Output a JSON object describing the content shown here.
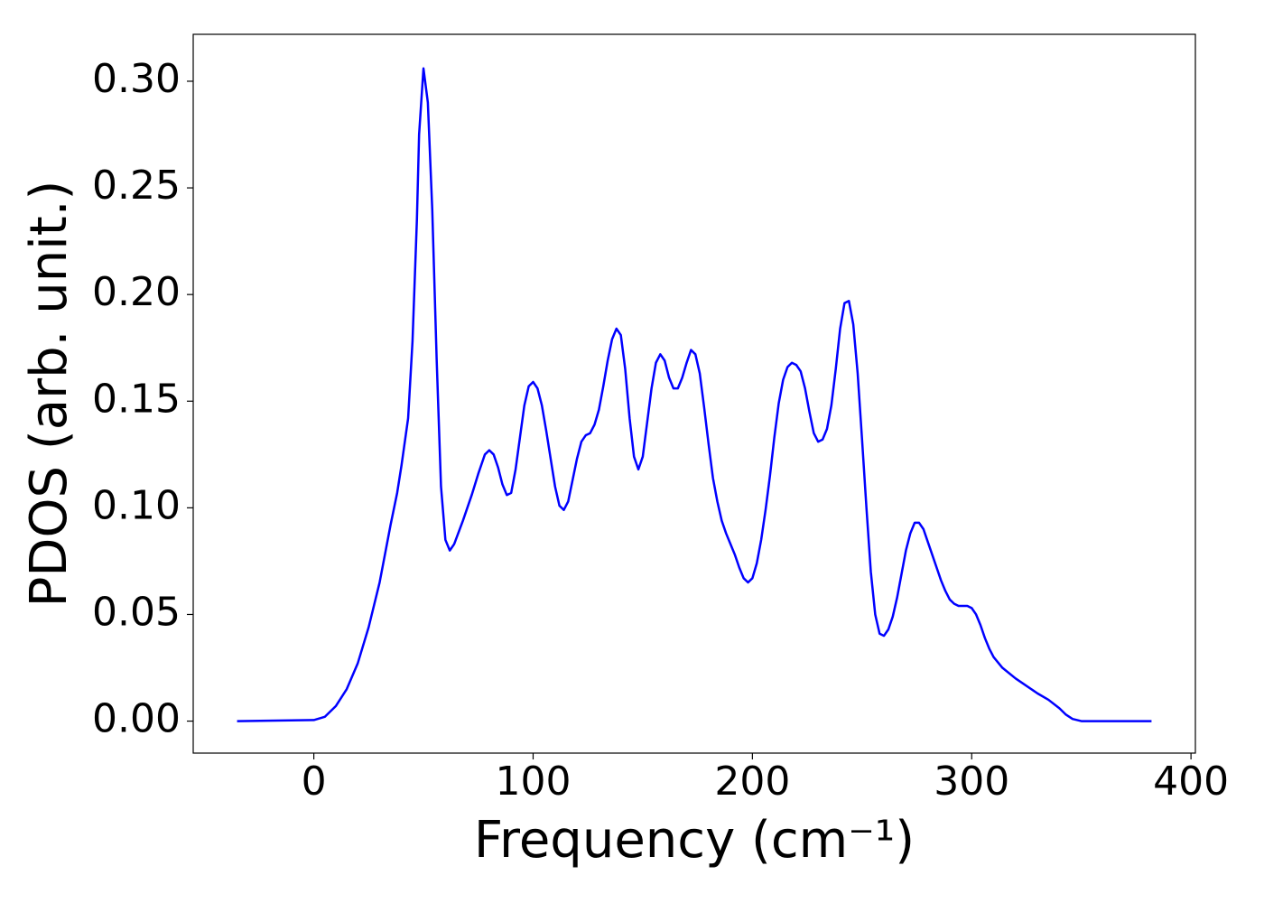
{
  "chart_data": {
    "type": "line",
    "xlabel": "Frequency (cm⁻¹)",
    "ylabel": "PDOS (arb. unit.)",
    "x": [
      -35,
      0,
      5,
      10,
      15,
      20,
      25,
      30,
      35,
      38,
      40,
      43,
      45,
      47,
      48,
      50,
      52,
      54,
      56,
      58,
      60,
      62,
      64,
      68,
      72,
      75,
      78,
      80,
      82,
      84,
      86,
      88,
      90,
      92,
      94,
      96,
      98,
      100,
      102,
      104,
      106,
      108,
      110,
      112,
      114,
      116,
      118,
      120,
      122,
      124,
      126,
      128,
      130,
      132,
      134,
      136,
      138,
      140,
      142,
      144,
      146,
      148,
      150,
      152,
      154,
      156,
      158,
      160,
      162,
      164,
      166,
      168,
      170,
      172,
      174,
      176,
      178,
      180,
      182,
      184,
      186,
      188,
      190,
      192,
      194,
      196,
      198,
      200,
      202,
      204,
      206,
      208,
      210,
      212,
      214,
      216,
      218,
      220,
      222,
      224,
      226,
      228,
      230,
      232,
      234,
      236,
      238,
      240,
      242,
      244,
      246,
      248,
      250,
      252,
      254,
      256,
      258,
      260,
      262,
      264,
      266,
      268,
      270,
      272,
      274,
      276,
      278,
      280,
      282,
      284,
      286,
      288,
      290,
      292,
      294,
      296,
      298,
      300,
      302,
      304,
      306,
      308,
      310,
      314,
      320,
      330,
      335,
      340,
      343,
      346,
      350,
      382
    ],
    "series": [
      {
        "color": "#0000ff",
        "values": [
          0,
          0.0005,
          0.002,
          0.007,
          0.015,
          0.027,
          0.044,
          0.065,
          0.092,
          0.107,
          0.12,
          0.142,
          0.178,
          0.235,
          0.275,
          0.306,
          0.29,
          0.24,
          0.17,
          0.11,
          0.085,
          0.08,
          0.083,
          0.094,
          0.106,
          0.116,
          0.125,
          0.127,
          0.125,
          0.119,
          0.111,
          0.106,
          0.107,
          0.118,
          0.133,
          0.148,
          0.157,
          0.159,
          0.156,
          0.148,
          0.136,
          0.123,
          0.11,
          0.101,
          0.099,
          0.103,
          0.113,
          0.123,
          0.131,
          0.134,
          0.135,
          0.139,
          0.146,
          0.157,
          0.169,
          0.179,
          0.184,
          0.181,
          0.165,
          0.142,
          0.124,
          0.118,
          0.124,
          0.14,
          0.156,
          0.168,
          0.172,
          0.169,
          0.161,
          0.156,
          0.156,
          0.161,
          0.168,
          0.174,
          0.172,
          0.163,
          0.147,
          0.13,
          0.114,
          0.103,
          0.094,
          0.088,
          0.083,
          0.078,
          0.072,
          0.067,
          0.065,
          0.067,
          0.074,
          0.085,
          0.099,
          0.115,
          0.133,
          0.149,
          0.16,
          0.166,
          0.168,
          0.167,
          0.164,
          0.156,
          0.145,
          0.135,
          0.131,
          0.132,
          0.137,
          0.148,
          0.165,
          0.184,
          0.196,
          0.197,
          0.186,
          0.163,
          0.132,
          0.1,
          0.07,
          0.05,
          0.041,
          0.04,
          0.043,
          0.049,
          0.058,
          0.069,
          0.08,
          0.088,
          0.093,
          0.093,
          0.09,
          0.084,
          0.078,
          0.072,
          0.066,
          0.061,
          0.057,
          0.055,
          0.054,
          0.054,
          0.054,
          0.053,
          0.05,
          0.045,
          0.039,
          0.034,
          0.03,
          0.025,
          0.02,
          0.013,
          0.01,
          0.006,
          0.003,
          0.001,
          0,
          0
        ]
      }
    ],
    "xlim": [
      -55,
      402
    ],
    "ylim": [
      -0.015,
      0.322
    ],
    "xticks": [
      0,
      100,
      200,
      300,
      400
    ],
    "yticks": [
      {
        "value": 0,
        "label": "0.00"
      },
      {
        "value": 0.05,
        "label": "0.05"
      },
      {
        "value": 0.1,
        "label": "0.10"
      },
      {
        "value": 0.15,
        "label": "0.15"
      },
      {
        "value": 0.2,
        "label": "0.20"
      },
      {
        "value": 0.25,
        "label": "0.25"
      },
      {
        "value": 0.3,
        "label": "0.30"
      }
    ]
  }
}
